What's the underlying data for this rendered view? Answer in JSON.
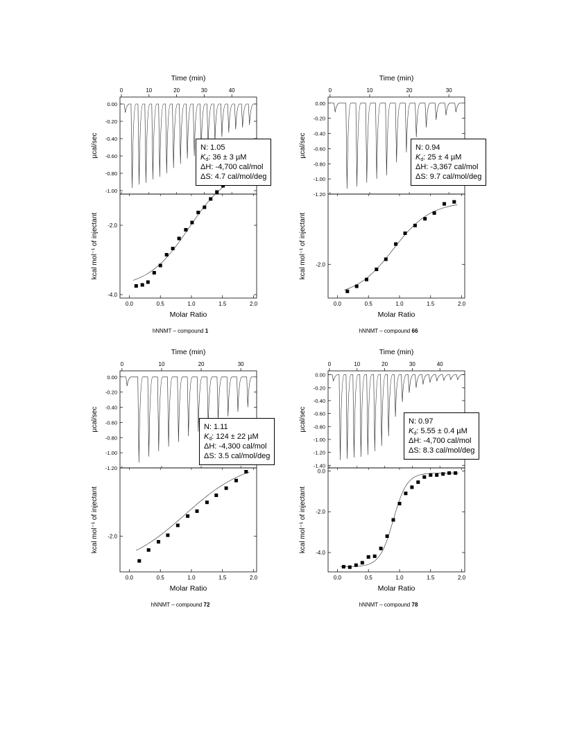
{
  "chart_data": [
    {
      "type": "scatter",
      "title": "",
      "caption_prefix": "hNNMT – compound",
      "compound": "1",
      "top": {
        "xlabel": "Time (min)",
        "ylabel": "µcal/sec",
        "xlim": [
          -0.5,
          49
        ],
        "ylim": [
          -1.04,
          0.08
        ],
        "xticks": [
          0,
          10,
          20,
          30,
          40
        ],
        "yticks": [
          0.0,
          -0.2,
          -0.4,
          -0.6,
          -0.8,
          -1.0
        ],
        "ytick_labels": [
          "0.00",
          "-0.20",
          "-0.40",
          "-0.60",
          "-0.80",
          "-1.00"
        ],
        "injection_times": [
          1,
          3.5,
          6,
          8.5,
          11,
          13.5,
          16,
          18.5,
          21,
          23.5,
          26,
          28.5,
          31,
          33.5,
          36,
          38.5,
          41,
          43.5,
          46
        ],
        "peak_heights": [
          -0.1,
          -0.97,
          -0.93,
          -0.91,
          -0.87,
          -0.84,
          -0.8,
          -0.74,
          -0.69,
          -0.63,
          -0.6,
          -0.55,
          -0.5,
          -0.44,
          -0.38,
          -0.33,
          -0.29,
          -0.27,
          -0.24
        ]
      },
      "bottom": {
        "xlabel": "Molar Ratio",
        "ylabel": "kcal mol⁻¹ of injectant",
        "xlim": [
          -0.15,
          2.05
        ],
        "ylim": [
          -4.1,
          -1.1
        ],
        "xticks": [
          0.0,
          0.5,
          1.0,
          1.5,
          2.0
        ],
        "xtick_labels": [
          "0.0",
          "0.5",
          "1.0",
          "1.5",
          "2.0"
        ],
        "yticks": [
          -2.0,
          -4.0
        ],
        "ytick_labels": [
          "-2.0",
          "-4.0"
        ],
        "x": [
          0.11,
          0.21,
          0.3,
          0.4,
          0.5,
          0.6,
          0.7,
          0.8,
          0.91,
          1.01,
          1.11,
          1.21,
          1.31,
          1.41,
          1.51,
          1.61,
          1.71,
          1.81,
          1.91
        ],
        "y": [
          -3.75,
          -3.72,
          -3.64,
          -3.37,
          -3.16,
          -2.85,
          -2.67,
          -2.38,
          -2.13,
          -1.92,
          -1.63,
          -1.48,
          -1.24,
          -1.04,
          -0.86,
          -0.75,
          -0.65,
          -0.55,
          -0.47
        ],
        "fit_y0": -3.8,
        "fit_y1": -0.35,
        "fit_x0": 0.96,
        "fit_k": 0.33
      },
      "params": {
        "n": "N: 1.05",
        "kd_label": "K",
        "kd_sub": "d",
        "kd_value": ": 36 ± 3 µM",
        "dh": "ΔH: -4,700 cal/mol",
        "ds": "ΔS: 4.7 cal/mol/deg"
      }
    },
    {
      "type": "scatter",
      "title": "",
      "caption_prefix": "hNNMT – compound",
      "compound": "66",
      "top": {
        "xlabel": "Time (min)",
        "ylabel": "µcal/sec",
        "xlim": [
          -0.5,
          34
        ],
        "ylim": [
          -1.2,
          0.08
        ],
        "xticks": [
          0,
          10,
          20,
          30
        ],
        "yticks": [
          0.0,
          -0.2,
          -0.4,
          -0.6,
          -0.8,
          -1.0,
          -1.2
        ],
        "ytick_labels": [
          "0.00",
          "-0.20",
          "-0.40",
          "-0.60",
          "-0.80",
          "-1.00",
          "-1.20"
        ],
        "injection_times": [
          1,
          4,
          6.5,
          9,
          11.5,
          14,
          16.5,
          19,
          21.5,
          24,
          26.5,
          29,
          31.5
        ],
        "peak_heights": [
          -0.12,
          -1.13,
          -1.1,
          -1.05,
          -1.0,
          -0.95,
          -0.78,
          -0.65,
          -0.45,
          -0.32,
          -0.22,
          -0.16,
          -0.12
        ]
      },
      "bottom": {
        "xlabel": "Molar Ratio",
        "ylabel": "kcal mol⁻¹ of injectant",
        "xlim": [
          -0.15,
          2.05
        ],
        "ylim": [
          -3.0,
          0.08
        ],
        "xticks": [
          0.0,
          0.5,
          1.0,
          1.5,
          2.0
        ],
        "xtick_labels": [
          "0.0",
          "0.5",
          "1.0",
          "1.5",
          "2.0"
        ],
        "yticks": [
          -2.0
        ],
        "ytick_labels": [
          "-2.0"
        ],
        "x": [
          0.16,
          0.31,
          0.47,
          0.63,
          0.78,
          0.94,
          1.09,
          1.25,
          1.41,
          1.56,
          1.72,
          1.88
        ],
        "y": [
          -2.8,
          -2.65,
          -2.45,
          -2.15,
          -1.85,
          -1.4,
          -1.08,
          -0.85,
          -0.65,
          -0.48,
          -0.21,
          -0.15
        ],
        "fit_y0": -2.95,
        "fit_y1": -0.15,
        "fit_x0": 0.9,
        "fit_k": 0.3
      },
      "params": {
        "n": "N: 0.94",
        "kd_label": "K",
        "kd_sub": "d",
        "kd_value": ": 25 ± 4 µM",
        "dh": "ΔH: -3,367 cal/mol",
        "ds": "ΔS: 9.7 cal/mol/deg"
      }
    },
    {
      "type": "scatter",
      "title": "",
      "caption_prefix": "hNNMT – compound",
      "compound": "72",
      "top": {
        "xlabel": "Time (min)",
        "ylabel": "µcal/sec",
        "xlim": [
          -0.5,
          34
        ],
        "ylim": [
          -1.2,
          0.08
        ],
        "xticks": [
          0,
          10,
          20,
          30
        ],
        "yticks": [
          0.0,
          -0.2,
          -0.4,
          -0.6,
          -0.8,
          -1.0,
          -1.2
        ],
        "ytick_labels": [
          "0.00",
          "-0.20",
          "-0.40",
          "-0.60",
          "-0.80",
          "-1.00",
          "-1.20"
        ],
        "injection_times": [
          1,
          4,
          6.5,
          9,
          11.5,
          14,
          16.5,
          19,
          21.5,
          24,
          26.5,
          29,
          31.5
        ],
        "peak_heights": [
          -0.12,
          -1.13,
          -1.05,
          -0.98,
          -0.92,
          -0.86,
          -0.78,
          -0.72,
          -0.66,
          -0.58,
          -0.52,
          -0.46,
          -0.4
        ]
      },
      "bottom": {
        "xlabel": "Molar Ratio",
        "ylabel": "kcal mol⁻¹ of injectant",
        "xlim": [
          -0.15,
          2.05
        ],
        "ylim": [
          -2.65,
          -0.75
        ],
        "xticks": [
          0.0,
          0.5,
          1.0,
          1.5,
          2.0
        ],
        "xtick_labels": [
          "0.0",
          "0.5",
          "1.0",
          "1.5",
          "2.0"
        ],
        "yticks": [
          -2.0
        ],
        "ytick_labels": [
          "-2.0"
        ],
        "x": [
          0.16,
          0.31,
          0.47,
          0.62,
          0.78,
          0.94,
          1.09,
          1.25,
          1.4,
          1.56,
          1.72,
          1.88
        ],
        "y": [
          -2.45,
          -2.25,
          -2.1,
          -1.98,
          -1.8,
          -1.63,
          -1.54,
          -1.38,
          -1.25,
          -1.12,
          -0.98,
          -0.82
        ],
        "fit_y0": -2.6,
        "fit_y1": -0.6,
        "fit_x0": 0.9,
        "fit_k": 0.5
      },
      "params": {
        "n": "N: 1.11",
        "kd_label": "K",
        "kd_sub": "d",
        "kd_value": ": 124 ± 22 µM",
        "dh": "ΔH: -4,300 cal/mol",
        "ds": "ΔS: 3.5 cal/mol/deg"
      }
    },
    {
      "type": "scatter",
      "title": "",
      "caption_prefix": "hNNMT – compound",
      "compound": "78",
      "top": {
        "xlabel": "Time (min)",
        "ylabel": "µcal/sec",
        "xlim": [
          -0.5,
          49
        ],
        "ylim": [
          -1.44,
          0.06
        ],
        "xticks": [
          0,
          10,
          20,
          30,
          40
        ],
        "yticks": [
          0.0,
          -0.2,
          -0.4,
          -0.6,
          -0.8,
          -1.0,
          -1.2,
          -1.4
        ],
        "ytick_labels": [
          "0.00",
          "-0.20",
          "-0.40",
          "-0.60",
          "-0.80",
          "-1.00",
          "-1.20",
          "-1.40"
        ],
        "injection_times": [
          1,
          3.5,
          6,
          8.5,
          11,
          13.5,
          16,
          18.5,
          21,
          23.5,
          26,
          28.5,
          31,
          33.5,
          36,
          38.5,
          41,
          43.5,
          46
        ],
        "peak_heights": [
          -0.1,
          -1.32,
          -1.3,
          -1.28,
          -1.27,
          -1.24,
          -1.18,
          -1.1,
          -0.95,
          -0.65,
          -0.42,
          -0.28,
          -0.2,
          -0.15,
          -0.12,
          -0.1,
          -0.09,
          -0.08,
          -0.08
        ]
      },
      "bottom": {
        "xlabel": "Molar Ratio",
        "ylabel": "kcal mol⁻¹ of injectant",
        "xlim": [
          -0.15,
          2.05
        ],
        "ylim": [
          -4.95,
          0.15
        ],
        "xticks": [
          0.0,
          0.5,
          1.0,
          1.5,
          2.0
        ],
        "xtick_labels": [
          "0.0",
          "0.5",
          "1.0",
          "1.5",
          "2.0"
        ],
        "yticks": [
          0.0,
          -2.0,
          -4.0
        ],
        "ytick_labels": [
          "0.0",
          "-2.0",
          "-4.0"
        ],
        "x": [
          0.1,
          0.2,
          0.3,
          0.4,
          0.5,
          0.6,
          0.7,
          0.8,
          0.9,
          1.0,
          1.1,
          1.2,
          1.3,
          1.4,
          1.5,
          1.6,
          1.7,
          1.8,
          1.9
        ],
        "y": [
          -4.7,
          -4.72,
          -4.62,
          -4.5,
          -4.22,
          -4.18,
          -3.8,
          -3.2,
          -2.4,
          -1.6,
          -1.1,
          -0.8,
          -0.55,
          -0.3,
          -0.2,
          -0.2,
          -0.15,
          -0.1,
          -0.1
        ],
        "fit_y0": -4.7,
        "fit_y1": -0.1,
        "fit_x0": 0.9,
        "fit_k": 0.11
      },
      "params": {
        "n": "N: 0.97",
        "kd_label": "K",
        "kd_sub": "d",
        "kd_value": ": 5.55 ± 0.4 µM",
        "dh": "ΔH: -4,700 cal/mol",
        "ds": "ΔS: 8.3 cal/mol/deg"
      }
    }
  ]
}
